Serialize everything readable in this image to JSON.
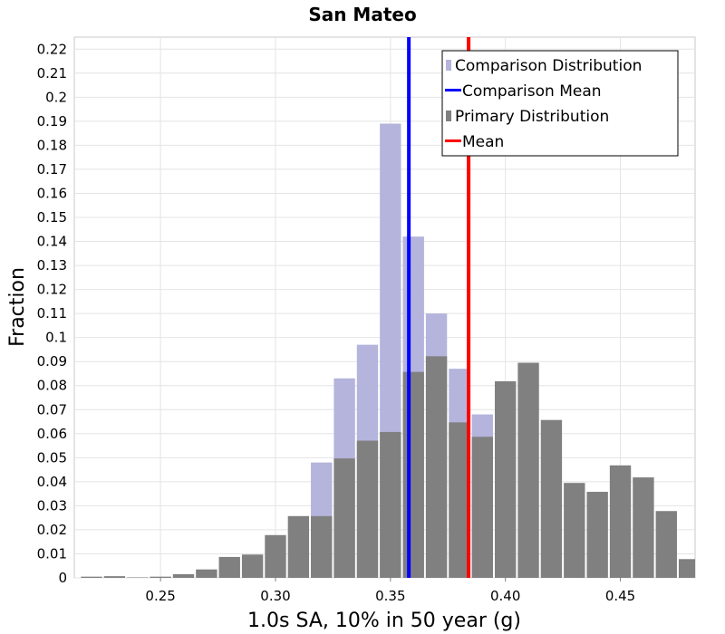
{
  "chart_data": {
    "type": "bar",
    "title": "San Mateo",
    "xlabel": "1.0s SA, 10% in 50 year (g)",
    "ylabel": "Fraction",
    "xlim": [
      0.2125,
      0.4825
    ],
    "ylim": [
      0,
      0.225
    ],
    "bin_width": 0.01,
    "x_ticks": [
      0.25,
      0.3,
      0.35,
      0.4,
      0.45
    ],
    "x_tick_labels": [
      "0.25",
      "0.30",
      "0.35",
      "0.40",
      "0.45"
    ],
    "y_ticks": [
      0,
      0.01,
      0.02,
      0.03,
      0.04,
      0.05,
      0.06,
      0.07,
      0.08,
      0.09,
      0.1,
      0.11,
      0.12,
      0.13,
      0.14,
      0.15,
      0.16,
      0.17,
      0.18,
      0.19,
      0.2,
      0.21,
      0.22
    ],
    "y_tick_labels": [
      "0",
      "0.01",
      "0.02",
      "0.03",
      "0.04",
      "0.05",
      "0.06",
      "0.07",
      "0.08",
      "0.09",
      "0.1",
      "0.11",
      "0.12",
      "0.13",
      "0.14",
      "0.15",
      "0.16",
      "0.17",
      "0.18",
      "0.19",
      "0.2",
      "0.21",
      "0.22"
    ],
    "grid": true,
    "legend_position": "top-right",
    "series": [
      {
        "name": "Comparison Distribution",
        "color": "#b4b4dc",
        "x": [
          0.32,
          0.33,
          0.34,
          0.35,
          0.36,
          0.37,
          0.38,
          0.39
        ],
        "values": [
          0.048,
          0.083,
          0.097,
          0.189,
          0.142,
          0.11,
          0.087,
          0.068
        ]
      },
      {
        "name": "Primary Distribution",
        "color": "#808080",
        "x": [
          0.22,
          0.23,
          0.24,
          0.25,
          0.26,
          0.27,
          0.28,
          0.29,
          0.3,
          0.31,
          0.32,
          0.33,
          0.34,
          0.35,
          0.36,
          0.37,
          0.38,
          0.39,
          0.4,
          0.41,
          0.42,
          0.43,
          0.44,
          0.45,
          0.46,
          0.47,
          0.48
        ],
        "values": [
          0.0005,
          0.0007,
          0.0002,
          0.0005,
          0.0015,
          0.0035,
          0.0087,
          0.0097,
          0.0178,
          0.0257,
          0.0257,
          0.0497,
          0.0571,
          0.0607,
          0.0857,
          0.0922,
          0.0647,
          0.0587,
          0.0818,
          0.0895,
          0.0657,
          0.0395,
          0.0358,
          0.0468,
          0.0418,
          0.0278,
          0.0078
        ]
      }
    ],
    "lines": [
      {
        "name": "Comparison Mean",
        "color": "#0000ff",
        "x": 0.358
      },
      {
        "name": "Mean",
        "color": "#ff0000",
        "x": 0.384
      }
    ]
  }
}
